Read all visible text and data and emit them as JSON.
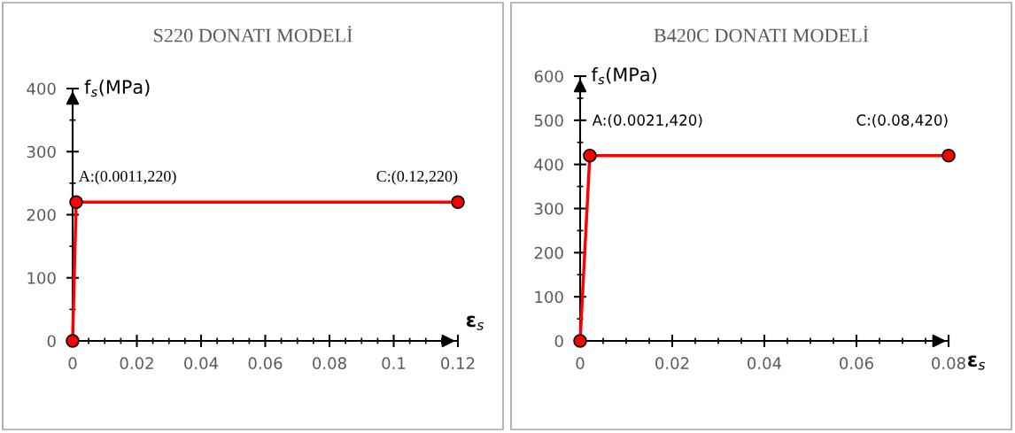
{
  "chart_data": [
    {
      "type": "line",
      "title": "S220 DONATI MODELİ",
      "xlabel": "ε$_{s}$",
      "ylabel": "f$_{s}$(MPa)",
      "x": [
        0,
        0.0011,
        0.12
      ],
      "series": [
        {
          "color": "#ff0000",
          "values": [
            0,
            220,
            220
          ]
        }
      ],
      "xlim": [
        0,
        0.12
      ],
      "xticks": [
        0,
        0.02,
        0.04,
        0.06,
        0.08,
        0.1,
        0.12
      ],
      "ylim": [
        0,
        400
      ],
      "yticks": [
        0,
        100,
        200,
        300,
        400
      ],
      "marker": "circle",
      "line_style": "solid",
      "grid": false,
      "annotations": [
        {
          "text": "A:(0.0011,220)",
          "x": 0.0011,
          "y": 220
        },
        {
          "text": "C:(0.12,220)",
          "x": 0.12,
          "y": 220
        }
      ]
    },
    {
      "type": "line",
      "title": "B420C DONATI MODELİ",
      "xlabel": "ε$_{s}$",
      "ylabel": "f$_{s}$(MPa)",
      "x": [
        0,
        0.0021,
        0.08
      ],
      "series": [
        {
          "color": "#ff0000",
          "values": [
            0,
            420,
            420
          ]
        }
      ],
      "xlim": [
        0,
        0.08
      ],
      "xticks": [
        0,
        0.02,
        0.04,
        0.06,
        0.08
      ],
      "ylim": [
        0,
        600
      ],
      "yticks": [
        0,
        100,
        200,
        300,
        400,
        500,
        600
      ],
      "marker": "circle",
      "line_style": "solid",
      "grid": false,
      "annotations": [
        {
          "text": "A:(0.0021,420)",
          "x": 0.0021,
          "y": 420
        },
        {
          "text": "C:(0.08,420)",
          "x": 0.08,
          "y": 420
        }
      ]
    }
  ]
}
